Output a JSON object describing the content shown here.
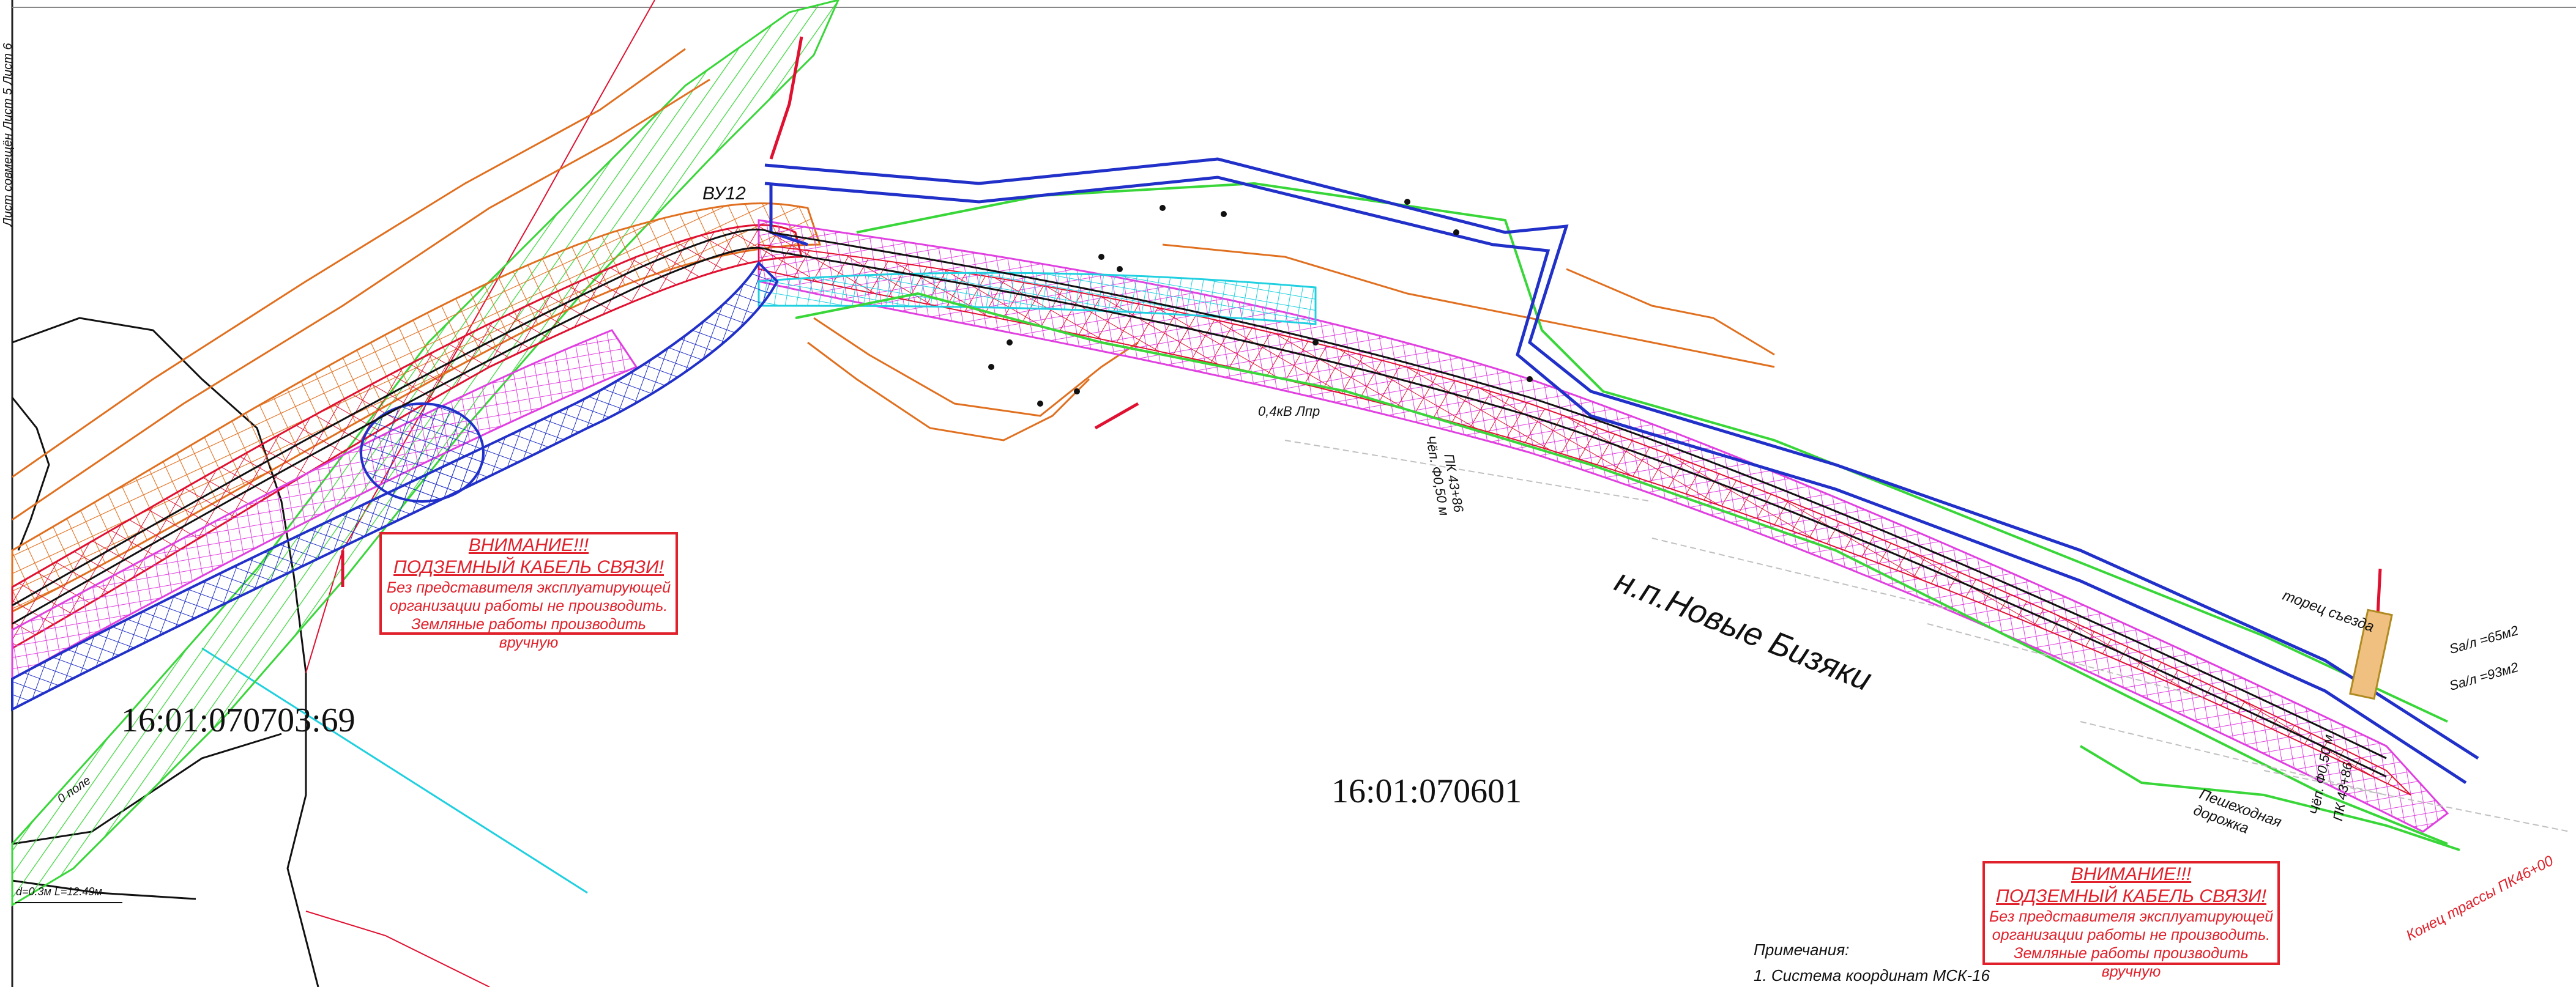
{
  "left_margin": {
    "text": "Лист совмещён   Лист 5   Лист 6"
  },
  "parcels": {
    "left": "16:01:070703:69",
    "center": "16:01:070601"
  },
  "settlement": "н.п.Новые Бизяки",
  "vertex": "ВУ12",
  "warnings": {
    "title1": "ВНИМАНИЕ!!!",
    "title2": "ПОДЗЕМНЫЙ КАБЕЛЬ СВЯЗИ!",
    "line1": "Без представителя эксплуатирующей",
    "line2": "организации работы не производить.",
    "line3": "Земляные работы производить вручную"
  },
  "labels": {
    "cable": "0,4кВ Лпр",
    "pipe1": "Чёп. Ф0,50 м",
    "pipe2": "ПК 43+86",
    "pipe3": "Чёп. Ф0,50 м",
    "pipe4": "ПК 43+86",
    "footpath": "Пешеходная дорожка",
    "road": "торец съезда",
    "area1": "Sa/л =65м2",
    "area2": "Sa/л =93м2",
    "end_route": "Конец трассы ПК46+00",
    "scale": "d=0.3м L=12.49м",
    "field": "0 поле"
  },
  "notes": {
    "title": "Примечания:",
    "item1": "1. Система координат МСК-16"
  },
  "colors": {
    "warning": "#e0202a",
    "orange": "#e07020",
    "green": "#39d639",
    "blue": "#2030c8",
    "magenta": "#e040e0",
    "cyan": "#20d0e0",
    "red": "#e01030",
    "olive": "#b08a20"
  }
}
